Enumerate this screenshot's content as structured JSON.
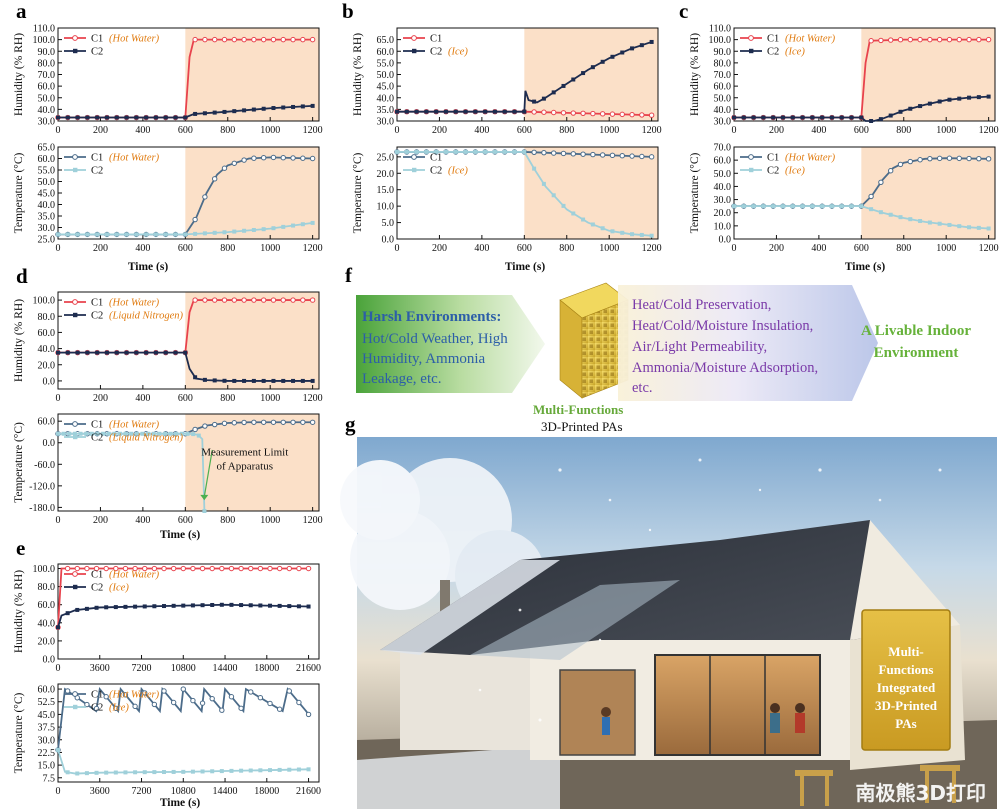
{
  "panels": [
    {
      "label": "a",
      "humidity": {
        "ylabel": "Humidity (% RH)",
        "ylim": [
          30,
          110
        ],
        "yticks": [
          30,
          40,
          50,
          60,
          70,
          80,
          90,
          100,
          110
        ],
        "yfmt": 1,
        "legend": [
          {
            "name": "C1",
            "note": "(Hot Water)"
          },
          {
            "name": "C2",
            "note": ""
          }
        ]
      },
      "temperature": {
        "ylabel": "Temperature (°C)",
        "ylim": [
          25,
          65
        ],
        "yticks": [
          25,
          30,
          35,
          40,
          45,
          50,
          55,
          60,
          65
        ],
        "yfmt": 1,
        "legend": [
          {
            "name": "C1",
            "note": "(Hot Water)"
          },
          {
            "name": "C2",
            "note": ""
          }
        ]
      },
      "xlabel": "Time (s)",
      "xticks": [
        0,
        200,
        400,
        600,
        800,
        1000,
        1200
      ]
    },
    {
      "label": "b",
      "humidity": {
        "ylabel": "Humidity (% RH)",
        "ylim": [
          30,
          70
        ],
        "yticks": [
          30,
          35,
          40,
          45,
          50,
          55,
          60,
          65
        ],
        "yfmt": 1,
        "legend": [
          {
            "name": "C1",
            "note": ""
          },
          {
            "name": "C2",
            "note": "(Ice)"
          }
        ]
      },
      "temperature": {
        "ylabel": "Temperature (°C)",
        "ylim": [
          0,
          28
        ],
        "yticks": [
          0,
          5,
          10,
          15,
          20,
          25
        ],
        "yfmt": 1,
        "legend": [
          {
            "name": "C1",
            "note": ""
          },
          {
            "name": "C2",
            "note": "(Ice)"
          }
        ]
      },
      "xlabel": "Time (s)",
      "xticks": [
        0,
        200,
        400,
        600,
        800,
        1000,
        1200
      ]
    },
    {
      "label": "c",
      "humidity": {
        "ylabel": "Humidity (% RH)",
        "ylim": [
          30,
          110
        ],
        "yticks": [
          30,
          40,
          50,
          60,
          70,
          80,
          90,
          100,
          110
        ],
        "yfmt": 1,
        "legend": [
          {
            "name": "C1",
            "note": "(Hot Water)"
          },
          {
            "name": "C2",
            "note": "(Ice)"
          }
        ]
      },
      "temperature": {
        "ylabel": "Temperature (°C)",
        "ylim": [
          0,
          70
        ],
        "yticks": [
          0,
          10,
          20,
          30,
          40,
          50,
          60,
          70
        ],
        "yfmt": 1,
        "legend": [
          {
            "name": "C1",
            "note": "(Hot Water)"
          },
          {
            "name": "C2",
            "note": "(Ice)"
          }
        ]
      },
      "xlabel": "Time (s)",
      "xticks": [
        0,
        200,
        400,
        600,
        800,
        1000,
        1200
      ]
    },
    {
      "label": "d",
      "humidity": {
        "ylabel": "Humidity (% RH)",
        "ylim": [
          -10,
          110
        ],
        "yticks": [
          0,
          20,
          40,
          60,
          80,
          100
        ],
        "yfmt": 1,
        "legend": [
          {
            "name": "C1",
            "note": "(Hot Water)"
          },
          {
            "name": "C2",
            "note": "(Liquid Nitrogen)"
          }
        ]
      },
      "temperature": {
        "ylabel": "Temperature (°C)",
        "ylim": [
          -190,
          80
        ],
        "yticks": [
          -180,
          -120,
          -60,
          0,
          60
        ],
        "yfmt": 1,
        "legend": [
          {
            "name": "C1",
            "note": "(Hot Water)"
          },
          {
            "name": "C2",
            "note": "(Liquid Nitrogen)"
          }
        ],
        "annotation": [
          "Measurement Limit",
          "of Apparatus"
        ]
      },
      "xlabel": "Time (s)",
      "xticks": [
        0,
        200,
        400,
        600,
        800,
        1000,
        1200
      ]
    },
    {
      "label": "e",
      "humidity": {
        "ylabel": "Humidity (% RH)",
        "ylim": [
          0,
          105
        ],
        "yticks": [
          0,
          20,
          40,
          60,
          80,
          100
        ],
        "yfmt": 1,
        "legend": [
          {
            "name": "C1",
            "note": "(Hot Water)"
          },
          {
            "name": "C2",
            "note": "(Ice)"
          }
        ]
      },
      "temperature": {
        "ylabel": "Temperature (°C)",
        "ylim": [
          5,
          63
        ],
        "yticks": [
          7.5,
          15.0,
          22.5,
          30.0,
          37.5,
          45.0,
          52.5,
          60.0
        ],
        "yfmt": 1,
        "legend": [
          {
            "name": "C1",
            "note": "(Hot Water)"
          },
          {
            "name": "C2",
            "note": "(Ice)"
          }
        ]
      },
      "xlabel": "Time (s)",
      "xticks": [
        0,
        3600,
        7200,
        10800,
        14400,
        18000,
        21600
      ]
    }
  ],
  "chart_data": [
    {
      "panel": "a",
      "type": "line",
      "title": "",
      "xlabel": "Time (s)",
      "ylabel": "Humidity (% RH)",
      "xlim": [
        0,
        1230
      ],
      "ylim": [
        30,
        110
      ],
      "series": [
        {
          "name": "C1",
          "x": [
            0,
            600,
            620,
            640,
            700,
            900,
            1200
          ],
          "y": [
            33,
            33,
            85,
            100,
            100,
            100,
            100
          ]
        },
        {
          "name": "C2",
          "x": [
            0,
            600,
            640,
            800,
            1000,
            1200
          ],
          "y": [
            33,
            33,
            36,
            38,
            41,
            43
          ]
        }
      ]
    },
    {
      "panel": "a",
      "type": "line",
      "xlabel": "Time (s)",
      "ylabel": "Temperature (°C)",
      "xlim": [
        0,
        1230
      ],
      "ylim": [
        25,
        65
      ],
      "series": [
        {
          "name": "C1",
          "x": [
            0,
            600,
            650,
            700,
            750,
            800,
            900,
            1000,
            1200
          ],
          "y": [
            27,
            27,
            34,
            45,
            53,
            57,
            60,
            60.5,
            60
          ]
        },
        {
          "name": "C2",
          "x": [
            0,
            600,
            800,
            1000,
            1200
          ],
          "y": [
            27,
            27,
            28,
            29.5,
            32
          ]
        }
      ]
    },
    {
      "panel": "b",
      "type": "line",
      "xlabel": "Time (s)",
      "ylabel": "Humidity (% RH)",
      "xlim": [
        0,
        1230
      ],
      "ylim": [
        30,
        70
      ],
      "series": [
        {
          "name": "C1",
          "x": [
            0,
            600,
            800,
            1000,
            1200
          ],
          "y": [
            34,
            34,
            33.5,
            33,
            32.5
          ]
        },
        {
          "name": "C2",
          "x": [
            0,
            600,
            605,
            620,
            660,
            700,
            800,
            900,
            1000,
            1100,
            1200
          ],
          "y": [
            34,
            34,
            43,
            39,
            38,
            40,
            46,
            52,
            57,
            61,
            64
          ]
        }
      ]
    },
    {
      "panel": "b",
      "type": "line",
      "xlabel": "Time (s)",
      "ylabel": "Temperature (°C)",
      "xlim": [
        0,
        1230
      ],
      "ylim": [
        0,
        28
      ],
      "series": [
        {
          "name": "C1",
          "x": [
            0,
            600,
            800,
            1000,
            1200
          ],
          "y": [
            26.5,
            26.5,
            26,
            25.5,
            25
          ]
        },
        {
          "name": "C2",
          "x": [
            0,
            600,
            650,
            700,
            800,
            900,
            1000,
            1100,
            1200
          ],
          "y": [
            26.5,
            26.5,
            21,
            16,
            9,
            5,
            2.5,
            1.5,
            1
          ]
        }
      ]
    },
    {
      "panel": "c",
      "type": "line",
      "xlabel": "Time (s)",
      "ylabel": "Humidity (% RH)",
      "xlim": [
        0,
        1230
      ],
      "ylim": [
        30,
        110
      ],
      "series": [
        {
          "name": "C1",
          "x": [
            0,
            600,
            620,
            640,
            800,
            1200
          ],
          "y": [
            33,
            33,
            80,
            99,
            100,
            100
          ]
        },
        {
          "name": "C2",
          "x": [
            0,
            600,
            620,
            660,
            700,
            800,
            900,
            1000,
            1100,
            1200
          ],
          "y": [
            33,
            33,
            29,
            29,
            32,
            39,
            44,
            48,
            50,
            51
          ]
        }
      ]
    },
    {
      "panel": "c",
      "type": "line",
      "xlabel": "Time (s)",
      "ylabel": "Temperature (°C)",
      "xlim": [
        0,
        1230
      ],
      "ylim": [
        0,
        70
      ],
      "series": [
        {
          "name": "C1",
          "x": [
            0,
            600,
            650,
            700,
            750,
            800,
            900,
            1000,
            1200
          ],
          "y": [
            25,
            25,
            33,
            45,
            54,
            58,
            61,
            61.5,
            61
          ]
        },
        {
          "name": "C2",
          "x": [
            0,
            600,
            700,
            800,
            900,
            1000,
            1100,
            1200
          ],
          "y": [
            25,
            25,
            20,
            16,
            13,
            11,
            9,
            8
          ]
        }
      ]
    },
    {
      "panel": "d",
      "type": "line",
      "xlabel": "Time (s)",
      "ylabel": "Humidity (% RH)",
      "xlim": [
        0,
        1230
      ],
      "ylim": [
        -10,
        110
      ],
      "series": [
        {
          "name": "C1",
          "x": [
            0,
            600,
            620,
            640,
            800,
            1200
          ],
          "y": [
            35,
            35,
            85,
            100,
            100,
            100
          ]
        },
        {
          "name": "C2",
          "x": [
            0,
            600,
            620,
            650,
            700,
            800,
            1200
          ],
          "y": [
            35,
            35,
            15,
            3,
            1,
            0,
            0
          ]
        }
      ]
    },
    {
      "panel": "d",
      "type": "line",
      "xlabel": "Time (s)",
      "ylabel": "Temperature (°C)",
      "xlim": [
        0,
        1230
      ],
      "ylim": [
        -190,
        80
      ],
      "series": [
        {
          "name": "C1",
          "x": [
            0,
            600,
            650,
            700,
            800,
            900,
            1200
          ],
          "y": [
            25,
            25,
            38,
            48,
            55,
            57,
            57
          ]
        },
        {
          "name": "C2",
          "x": [
            0,
            600,
            640,
            660,
            680,
            690
          ],
          "y": [
            25,
            25,
            24,
            22,
            10,
            -190
          ]
        }
      ]
    },
    {
      "panel": "e",
      "type": "line",
      "xlabel": "Time (s)",
      "ylabel": "Humidity (% RH)",
      "xlim": [
        0,
        22500
      ],
      "ylim": [
        0,
        105
      ],
      "series": [
        {
          "name": "C1",
          "x": [
            0,
            300,
            600,
            21600
          ],
          "y": [
            35,
            100,
            100,
            100
          ]
        },
        {
          "name": "C2",
          "x": [
            0,
            300,
            1500,
            3600,
            7200,
            10800,
            14400,
            18000,
            21600
          ],
          "y": [
            35,
            48,
            54,
            57,
            58,
            59,
            60,
            59,
            58
          ]
        }
      ]
    },
    {
      "panel": "e",
      "type": "line",
      "xlabel": "Time (s)",
      "ylabel": "Temperature (°C)",
      "xlim": [
        0,
        22500
      ],
      "ylim": [
        5,
        63
      ],
      "series": [
        {
          "name": "C1",
          "sawtooth": true,
          "x": [
            0,
            600,
            1000
          ],
          "y": [
            24,
            60,
            55
          ],
          "peaks_at": [
            1000,
            3600,
            5400,
            7200,
            9000,
            10800,
            12600,
            14400,
            16200,
            19800
          ],
          "peak": 60,
          "trough": 47
        },
        {
          "name": "C2",
          "x": [
            0,
            600,
            1500,
            3600,
            7200,
            10800,
            14400,
            18000,
            21600
          ],
          "y": [
            24,
            11,
            10,
            10.5,
            10.8,
            11,
            11.5,
            12,
            12.5
          ]
        }
      ]
    }
  ],
  "panel_f": {
    "label": "f",
    "left_title": "Harsh Environments:",
    "left_text": [
      "Hot/Cold Weather, High",
      "Humidity, Ammonia",
      "Leakage, etc."
    ],
    "mid_title": "Multi-Functions",
    "mid_sub": "3D-Printed PAs",
    "right_list": [
      "Heat/Cold Preservation,",
      "Heat/Cold/Moisture Insulation,",
      "Air/Light Permeability,",
      "Ammonia/Moisture Adsorption,",
      "etc."
    ],
    "result": [
      "A Livable Indoor",
      "Environment"
    ]
  },
  "panel_g": {
    "label": "g",
    "sign": [
      "Multi-",
      "Functions",
      "Integrated",
      "3D-Printed",
      "PAs"
    ],
    "watermark": "南极熊3D打印"
  },
  "colors": {
    "c1_humid": "#e8434d",
    "c2_dark": "#1d2c4f",
    "c1_temp": "#4c6c8a",
    "c2_temp": "#9fd0da",
    "shade": "#fbe0c8",
    "note": "#e07b10",
    "green": "#66b23a",
    "blue": "#3768b7",
    "purple": "#7b3aa3"
  }
}
